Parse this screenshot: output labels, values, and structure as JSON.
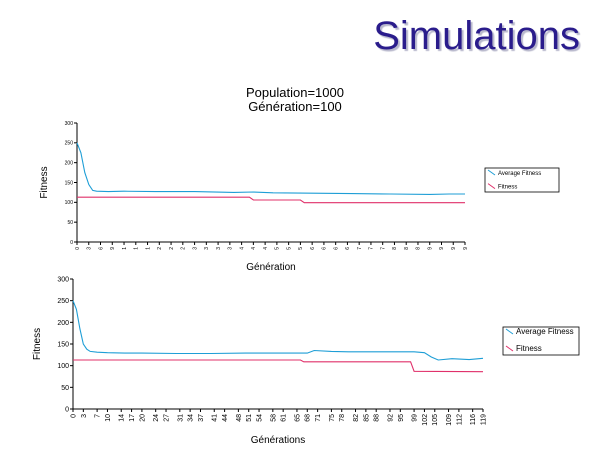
{
  "slide": {
    "title": "Simulations"
  },
  "chart_data": [
    {
      "type": "line",
      "title": "Population=1000",
      "subtitle": "Génération=100",
      "xlabel": "Génération",
      "ylabel": "Fitness",
      "xlim": [
        0,
        99
      ],
      "ylim": [
        0,
        300
      ],
      "yticks": [
        0,
        50,
        100,
        150,
        200,
        250,
        300
      ],
      "xticks": [
        0,
        3,
        6,
        9,
        12,
        15,
        18,
        21,
        24,
        27,
        30,
        33,
        36,
        39,
        42,
        45,
        48,
        51,
        54,
        57,
        60,
        63,
        66,
        69,
        72,
        75,
        78,
        81,
        84,
        87,
        90,
        93,
        96,
        99
      ],
      "xtick_labels": [
        "0",
        "3",
        "6",
        "9",
        "1",
        "1",
        "1",
        "2",
        "2",
        "2",
        "3",
        "3",
        "3",
        "3",
        "4",
        "4",
        "4",
        "5",
        "5",
        "5",
        "6",
        "6",
        "6",
        "6",
        "7",
        "7",
        "7",
        "8",
        "8",
        "8",
        "9",
        "9",
        "9",
        "9"
      ],
      "grid": false,
      "legend": "right",
      "series": [
        {
          "name": "Average Fitness",
          "color": "#1e9ed6",
          "x": [
            0,
            1,
            2,
            3,
            4,
            5,
            8,
            12,
            20,
            30,
            40,
            45,
            50,
            60,
            70,
            80,
            90,
            95,
            99
          ],
          "y": [
            250,
            225,
            175,
            145,
            130,
            128,
            127,
            128,
            127,
            127,
            125,
            126,
            124,
            123,
            122,
            121,
            120,
            121,
            121
          ]
        },
        {
          "name": "Fitness",
          "color": "#e0306a",
          "x": [
            0,
            44,
            45,
            57,
            58,
            99
          ],
          "y": [
            113,
            113,
            106,
            106,
            99,
            99
          ]
        }
      ]
    },
    {
      "type": "line",
      "xlabel": "Générations",
      "ylabel": "Fitness",
      "xlim": [
        0,
        119
      ],
      "ylim": [
        0,
        300
      ],
      "yticks": [
        0,
        50,
        100,
        150,
        200,
        250,
        300
      ],
      "xticks": [
        0,
        3,
        7,
        10,
        14,
        17,
        20,
        24,
        27,
        31,
        34,
        37,
        41,
        44,
        48,
        51,
        54,
        58,
        61,
        65,
        68,
        71,
        75,
        78,
        82,
        85,
        88,
        92,
        95,
        99,
        102,
        105,
        109,
        112,
        116,
        119
      ],
      "xtick_labels": [
        "0",
        "3",
        "7",
        "10",
        "14",
        "17",
        "20",
        "24",
        "27",
        "31",
        "34",
        "37",
        "41",
        "44",
        "48",
        "51",
        "54",
        "58",
        "61",
        "65",
        "68",
        "71",
        "75",
        "78",
        "82",
        "85",
        "88",
        "92",
        "95",
        "99",
        "102",
        "105",
        "109",
        "112",
        "116",
        "119"
      ],
      "grid": false,
      "legend": "right",
      "series": [
        {
          "name": "Average Fitness",
          "color": "#1e9ed6",
          "x": [
            0,
            1,
            2,
            3,
            4,
            5,
            7,
            10,
            15,
            20,
            30,
            40,
            50,
            60,
            68,
            70,
            75,
            80,
            90,
            99,
            102,
            104,
            106,
            110,
            115,
            119
          ],
          "y": [
            250,
            230,
            185,
            150,
            138,
            133,
            131,
            130,
            129,
            129,
            128,
            128,
            129,
            129,
            129,
            135,
            133,
            132,
            132,
            132,
            130,
            120,
            113,
            116,
            114,
            117
          ]
        },
        {
          "name": "Fitness",
          "color": "#e0306a",
          "x": [
            0,
            66,
            67,
            98,
            99,
            119
          ],
          "y": [
            113,
            113,
            109,
            109,
            87,
            86
          ]
        }
      ]
    }
  ]
}
